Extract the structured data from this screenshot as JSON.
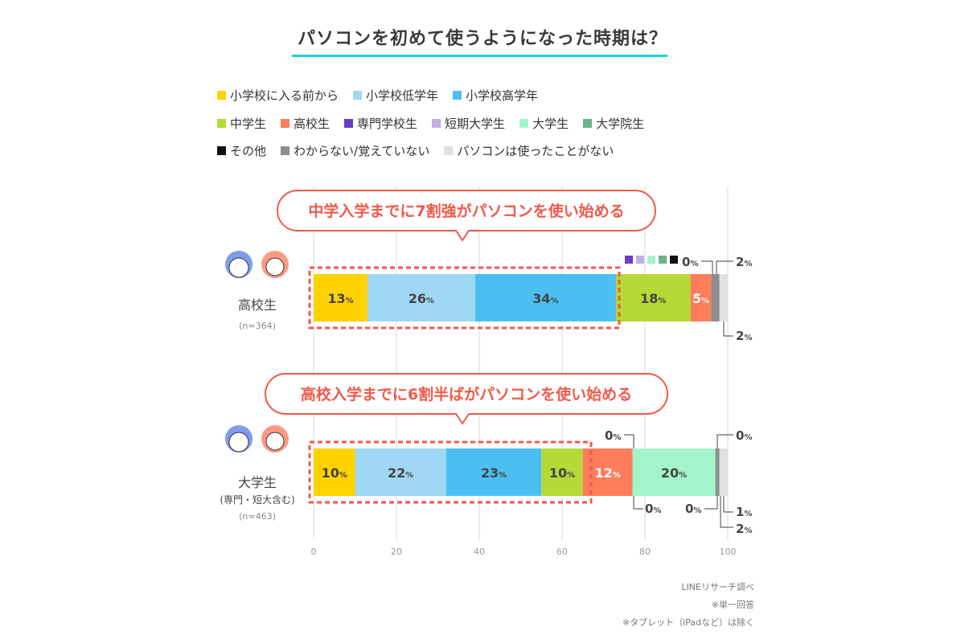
{
  "chart_data": {
    "type": "bar",
    "orientation": "horizontal-stacked",
    "title": "パソコンを初めて使うようになった時期は？",
    "xlim": [
      0,
      100
    ],
    "xticks": [
      0,
      20,
      40,
      60,
      80,
      100
    ],
    "grid": true,
    "legend_placement": "top",
    "series_names": [
      "小学校に入る前から",
      "小学校低学年",
      "小学校高学年",
      "中学生",
      "高校生",
      "専門学校生",
      "短期大学生",
      "大学生",
      "大学院生",
      "その他",
      "わからない/覚えていない",
      "パソコンは使ったことがない"
    ],
    "colors": [
      "#ffd300",
      "#9fd8f5",
      "#4bbff2",
      "#b5d936",
      "#ff7d5a",
      "#6a3cc4",
      "#c3aee8",
      "#a2f5c8",
      "#6ab38c",
      "#111111",
      "#8e8e8e",
      "#e0e0e0"
    ],
    "categories": [
      {
        "label": "高校生",
        "sub": "",
        "n": "(n=364)",
        "values": [
          13,
          26,
          34,
          18,
          5,
          0,
          0,
          0,
          0,
          0,
          2,
          2
        ],
        "callout": "中学入学までに7割強がパソコンを使い始める"
      },
      {
        "label": "大学生",
        "sub": "(専門・短大含む)",
        "n": "(n=463)",
        "values": [
          10,
          22,
          23,
          10,
          12,
          0,
          0,
          20,
          0,
          0,
          1,
          2
        ],
        "callout": "高校入学までに6割半ばがパソコンを使い始める"
      }
    ],
    "value_suffix": "%"
  },
  "footnotes": [
    "LINEリサーチ調べ",
    "※単一回答",
    "※タブレット（iPadなど）は除く"
  ]
}
